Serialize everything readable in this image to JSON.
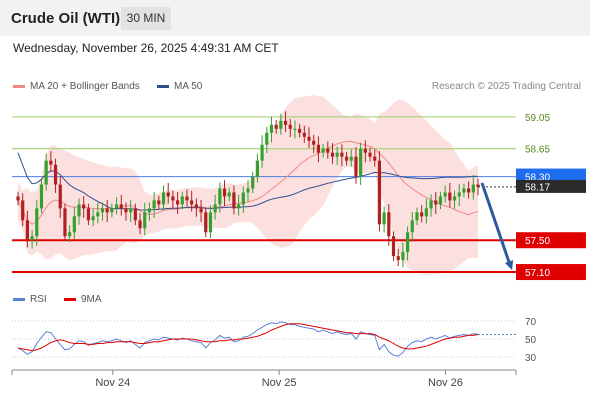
{
  "header": {
    "title": "Crude Oil (WTI)",
    "timeframe": "30 MIN"
  },
  "date": "Wednesday, November 26, 2025 4:49:31 AM CET",
  "legend": {
    "ma": {
      "label": "MA 20 + Bollinger Bands",
      "color": "#f08888"
    },
    "ma50": {
      "label": "MA 50",
      "color": "#2f4f8f"
    },
    "rsi": {
      "label": "RSI",
      "color": "#5b82d8"
    },
    "rsi_ma": {
      "label": "9MA",
      "color": "#e00000"
    }
  },
  "copyright": "Research © 2025 Trading Central",
  "chart_data": {
    "type": "candlestick",
    "ylim": [
      57.0,
      59.3
    ],
    "x_ticks": [
      {
        "label": "Nov 24",
        "at": 0.2
      },
      {
        "label": "Nov 25",
        "at": 0.53
      },
      {
        "label": "Nov 26",
        "at": 0.86
      }
    ],
    "levels": [
      {
        "value": 59.05,
        "label": "59.05",
        "kind": "resistance"
      },
      {
        "value": 58.65,
        "label": "58.65",
        "kind": "resistance"
      },
      {
        "value": 58.3,
        "label": "58.30",
        "kind": "pivot"
      },
      {
        "value": 57.5,
        "label": "57.50",
        "kind": "support"
      },
      {
        "value": 57.1,
        "label": "57.10",
        "kind": "support"
      }
    ],
    "last_price": {
      "value": 58.17,
      "label": "58.17"
    },
    "forecast_arrow": {
      "from": 58.22,
      "to": 57.1
    },
    "closes": [
      58.0,
      57.75,
      57.5,
      57.55,
      57.9,
      58.2,
      58.5,
      58.45,
      58.2,
      57.9,
      57.55,
      57.6,
      57.8,
      57.95,
      57.9,
      57.75,
      57.8,
      57.85,
      57.9,
      57.85,
      57.9,
      57.95,
      57.9,
      57.85,
      57.9,
      57.75,
      57.65,
      57.85,
      57.9,
      58.0,
      57.95,
      58.1,
      58.05,
      58.0,
      57.95,
      58.05,
      58.0,
      57.95,
      57.9,
      57.85,
      57.6,
      57.85,
      57.95,
      58.15,
      58.05,
      58.1,
      57.9,
      57.95,
      58.1,
      58.15,
      58.3,
      58.5,
      58.7,
      58.85,
      58.95,
      58.9,
      59.0,
      58.95,
      58.9,
      58.9,
      58.85,
      58.8,
      58.75,
      58.7,
      58.6,
      58.65,
      58.6,
      58.55,
      58.6,
      58.55,
      58.5,
      58.55,
      58.3,
      58.65,
      58.6,
      58.55,
      58.5,
      57.7,
      57.85,
      57.55,
      57.3,
      57.25,
      57.35,
      57.6,
      57.75,
      57.85,
      57.8,
      57.9,
      58.0,
      57.95,
      58.05,
      58.1,
      58.0,
      58.05,
      58.1,
      58.15,
      58.1,
      58.2,
      58.17
    ],
    "rsi": {
      "levels": [
        70,
        50,
        30
      ],
      "ylim": [
        20,
        80
      ],
      "values": [
        40,
        37,
        33,
        36,
        45,
        52,
        58,
        57,
        50,
        44,
        38,
        39,
        44,
        48,
        47,
        43,
        45,
        46,
        48,
        47,
        48,
        50,
        48,
        46,
        48,
        44,
        40,
        46,
        48,
        50,
        49,
        52,
        51,
        50,
        49,
        51,
        50,
        48,
        47,
        46,
        40,
        46,
        49,
        54,
        51,
        52,
        47,
        48,
        52,
        53,
        56,
        60,
        63,
        66,
        68,
        67,
        69,
        68,
        66,
        66,
        64,
        63,
        62,
        61,
        58,
        60,
        58,
        56,
        58,
        56,
        55,
        56,
        50,
        58,
        56,
        55,
        54,
        38,
        44,
        36,
        32,
        31,
        35,
        42,
        46,
        48,
        47,
        50,
        52,
        50,
        52,
        54,
        51,
        53,
        54,
        55,
        54,
        56,
        55
      ],
      "ma_values": [
        40,
        39,
        38,
        37,
        38,
        40,
        43,
        46,
        48,
        49,
        48,
        46,
        45,
        45,
        45,
        44,
        44,
        45,
        45,
        46,
        46,
        47,
        47,
        47,
        47,
        46,
        45,
        45,
        46,
        47,
        47,
        48,
        49,
        50,
        50,
        50,
        50,
        50,
        49,
        48,
        47,
        47,
        47,
        48,
        48,
        49,
        49,
        50,
        50,
        51,
        52,
        53,
        55,
        57,
        60,
        62,
        64,
        66,
        67,
        67,
        67,
        66,
        65,
        64,
        63,
        62,
        61,
        60,
        59,
        58,
        57,
        57,
        56,
        56,
        56,
        56,
        55,
        52,
        50,
        48,
        45,
        42,
        40,
        39,
        39,
        40,
        41,
        42,
        44,
        46,
        48,
        50,
        51,
        52,
        52,
        53,
        54,
        54,
        55
      ]
    }
  }
}
